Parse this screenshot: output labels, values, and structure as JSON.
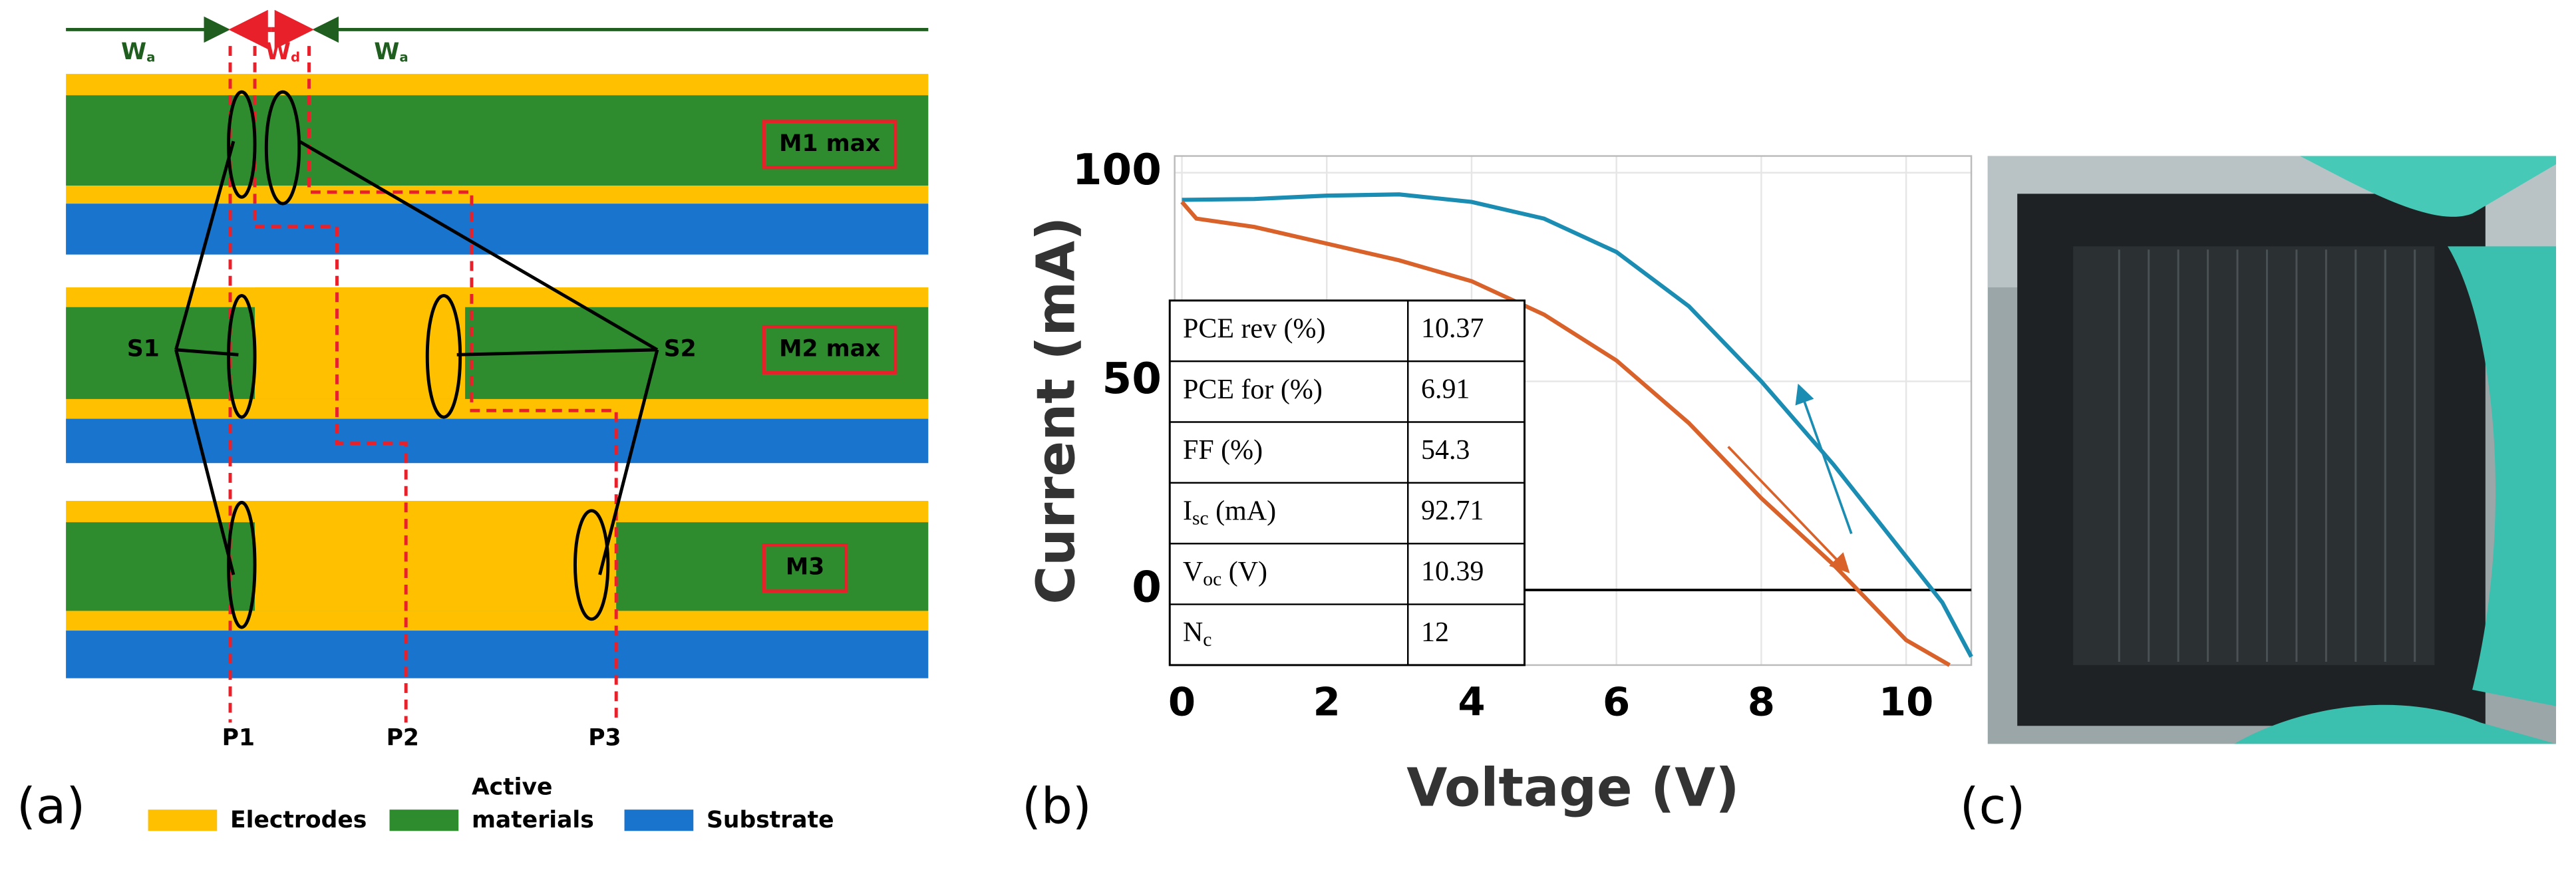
{
  "panel_labels": [
    "(a)",
    "(b)",
    "(c)"
  ],
  "diagram": {
    "widths": [
      {
        "base": "W",
        "sub": "a"
      },
      {
        "base": "W",
        "sub": "d"
      },
      {
        "base": "W",
        "sub": "a"
      }
    ],
    "modules": [
      "M1 max",
      "M2 max",
      "M3"
    ],
    "scribes": [
      "S1",
      "S2"
    ],
    "lines": [
      "P1",
      "P2",
      "P3"
    ],
    "legend": [
      {
        "label": [
          "Electrodes"
        ],
        "color": "#ffc000"
      },
      {
        "label": [
          "Active",
          "materials"
        ],
        "color": "#2e8b2e"
      },
      {
        "label": [
          "Substrate"
        ],
        "color": "#1874cd"
      }
    ]
  },
  "chart_data": {
    "type": "line",
    "xlabel": "Voltage (V)",
    "ylabel": "Current (mA)",
    "xlim": [
      -0.1,
      10.9
    ],
    "ylim": [
      -18,
      104
    ],
    "xticks": [
      0,
      2,
      4,
      6,
      8,
      10
    ],
    "yticks": [
      0,
      50,
      100
    ],
    "grid": true,
    "series": [
      {
        "color": "#1b8db3",
        "x": [
          0,
          1,
          2,
          3,
          4,
          5,
          6,
          7,
          8,
          9,
          10,
          10.5,
          10.9
        ],
        "values": [
          93.5,
          93.7,
          94.5,
          94.8,
          93,
          89,
          81,
          68,
          50,
          30,
          8,
          -3,
          -16
        ]
      },
      {
        "color": "#d9622b",
        "x": [
          0,
          0.2,
          1,
          2,
          3,
          4,
          5,
          6,
          7,
          8,
          9,
          9.5,
          10,
          10.6
        ],
        "values": [
          93,
          89,
          87,
          83,
          79,
          74,
          66,
          55,
          40,
          22,
          6,
          -3,
          -12,
          -18
        ]
      }
    ],
    "table": [
      {
        "label": [
          {
            "text": "PCE rev (%)"
          }
        ],
        "value": 10.37
      },
      {
        "label": [
          {
            "text": "PCE for (%)"
          }
        ],
        "value": 6.91
      },
      {
        "label": [
          {
            "text": "FF (%)"
          }
        ],
        "value": 54.3
      },
      {
        "label": [
          {
            "text": "I"
          },
          {
            "text": "sc",
            "sub": true
          },
          {
            "text": " (mA)"
          }
        ],
        "value": 92.71
      },
      {
        "label": [
          {
            "text": "V"
          },
          {
            "text": "oc",
            "sub": true
          },
          {
            "text": " (V)"
          }
        ],
        "value": 10.39
      },
      {
        "label": [
          {
            "text": "N"
          },
          {
            "text": "c",
            "sub": true
          }
        ],
        "value": 12
      }
    ]
  }
}
